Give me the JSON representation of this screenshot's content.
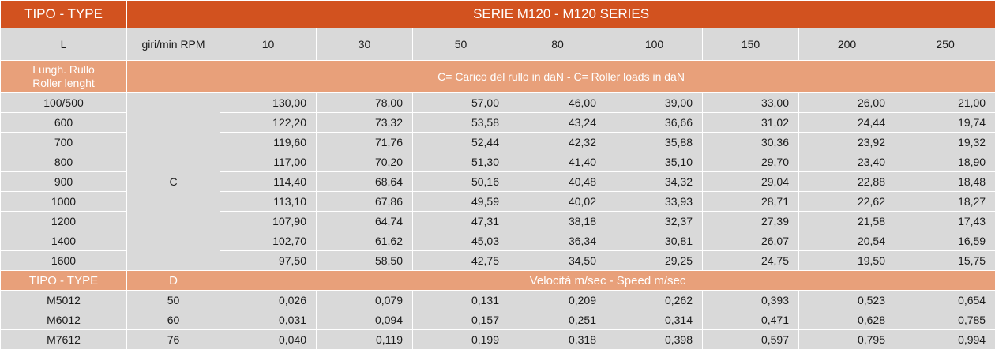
{
  "header": {
    "type_label": "TIPO - TYPE",
    "series_label": "SERIE M120 - M120 SERIES"
  },
  "rpm_row": {
    "l_label": "L",
    "rpm_label": "giri/min RPM",
    "values": [
      "10",
      "30",
      "50",
      "80",
      "100",
      "150",
      "200",
      "250"
    ]
  },
  "load_header": {
    "length_label_line1": "Lungh. Rullo",
    "length_label_line2": "Roller lenght",
    "load_label": "C= Carico del rullo in daN - C= Roller loads in daN",
    "c_label": "C"
  },
  "load_rows": [
    {
      "length": "100/500",
      "values": [
        "130,00",
        "78,00",
        "57,00",
        "46,00",
        "39,00",
        "33,00",
        "26,00",
        "21,00"
      ]
    },
    {
      "length": "600",
      "values": [
        "122,20",
        "73,32",
        "53,58",
        "43,24",
        "36,66",
        "31,02",
        "24,44",
        "19,74"
      ]
    },
    {
      "length": "700",
      "values": [
        "119,60",
        "71,76",
        "52,44",
        "42,32",
        "35,88",
        "30,36",
        "23,92",
        "19,32"
      ]
    },
    {
      "length": "800",
      "values": [
        "117,00",
        "70,20",
        "51,30",
        "41,40",
        "35,10",
        "29,70",
        "23,40",
        "18,90"
      ]
    },
    {
      "length": "900",
      "values": [
        "114,40",
        "68,64",
        "50,16",
        "40,48",
        "34,32",
        "29,04",
        "22,88",
        "18,48"
      ]
    },
    {
      "length": "1000",
      "values": [
        "113,10",
        "67,86",
        "49,59",
        "40,02",
        "33,93",
        "28,71",
        "22,62",
        "18,27"
      ]
    },
    {
      "length": "1200",
      "values": [
        "107,90",
        "64,74",
        "47,31",
        "38,18",
        "32,37",
        "27,39",
        "21,58",
        "17,43"
      ]
    },
    {
      "length": "1400",
      "values": [
        "102,70",
        "61,62",
        "45,03",
        "36,34",
        "30,81",
        "26,07",
        "20,54",
        "16,59"
      ]
    },
    {
      "length": "1600",
      "values": [
        "97,50",
        "58,50",
        "42,75",
        "34,50",
        "29,25",
        "24,75",
        "19,50",
        "15,75"
      ]
    }
  ],
  "speed_header": {
    "type_label": "TIPO - TYPE",
    "d_label": "D",
    "speed_label": "Velocità m/sec - Speed m/sec"
  },
  "speed_rows": [
    {
      "type": "M5012",
      "d": "50",
      "values": [
        "0,026",
        "0,079",
        "0,131",
        "0,209",
        "0,262",
        "0,393",
        "0,523",
        "0,654"
      ]
    },
    {
      "type": "M6012",
      "d": "60",
      "values": [
        "0,031",
        "0,094",
        "0,157",
        "0,251",
        "0,314",
        "0,471",
        "0,628",
        "0,785"
      ]
    },
    {
      "type": "M7612",
      "d": "76",
      "values": [
        "0,040",
        "0,119",
        "0,199",
        "0,318",
        "0,398",
        "0,597",
        "0,795",
        "0,994"
      ]
    }
  ]
}
